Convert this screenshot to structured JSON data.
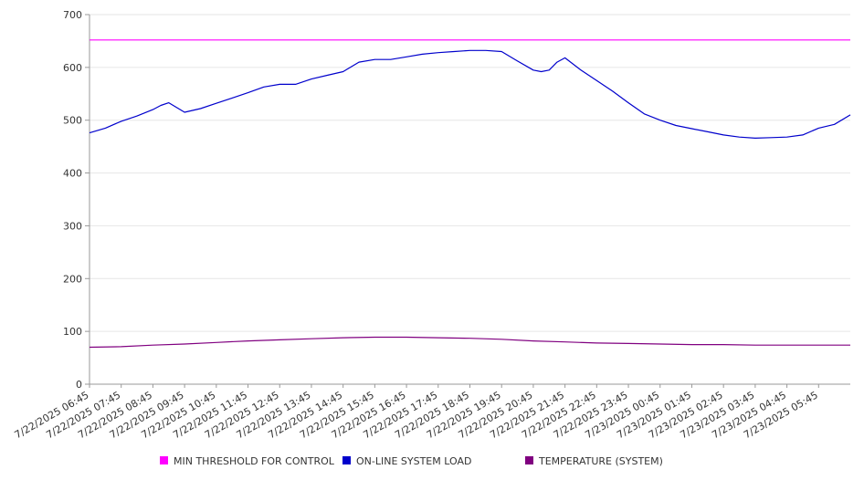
{
  "chart_data": {
    "type": "line",
    "ylim": [
      0,
      700
    ],
    "yticks": [
      0,
      100,
      200,
      300,
      400,
      500,
      600,
      700
    ],
    "x_range": [
      "7/22/2025 06:45",
      "7/23/2025 06:45"
    ],
    "xticks": [
      "7/22/2025 06:45",
      "7/22/2025 07:45",
      "7/22/2025 08:45",
      "7/22/2025 09:45",
      "7/22/2025 10:45",
      "7/22/2025 11:45",
      "7/22/2025 12:45",
      "7/22/2025 13:45",
      "7/22/2025 14:45",
      "7/22/2025 15:45",
      "7/22/2025 16:45",
      "7/22/2025 17:45",
      "7/22/2025 18:45",
      "7/22/2025 19:45",
      "7/22/2025 20:45",
      "7/22/2025 21:45",
      "7/22/2025 22:45",
      "7/22/2025 23:45",
      "7/23/2025 00:45",
      "7/23/2025 01:45",
      "7/23/2025 02:45",
      "7/23/2025 03:45",
      "7/23/2025 04:45",
      "7/23/2025 05:45"
    ],
    "grid": "horizontal",
    "legend_position": "bottom",
    "series": [
      {
        "name": "MIN THRESHOLD FOR CONTROL",
        "color": "#ff00ff",
        "x": [
          "7/22/2025 06:45",
          "7/23/2025 06:45"
        ],
        "y": [
          652,
          652
        ]
      },
      {
        "name": "ON-LINE SYSTEM LOAD",
        "color": "#0000cc",
        "x": [
          "7/22/2025 06:45",
          "7/22/2025 07:15",
          "7/22/2025 07:45",
          "7/22/2025 08:15",
          "7/22/2025 08:45",
          "7/22/2025 09:00",
          "7/22/2025 09:15",
          "7/22/2025 09:45",
          "7/22/2025 10:15",
          "7/22/2025 10:45",
          "7/22/2025 11:15",
          "7/22/2025 11:45",
          "7/22/2025 12:15",
          "7/22/2025 12:45",
          "7/22/2025 13:15",
          "7/22/2025 13:45",
          "7/22/2025 14:15",
          "7/22/2025 14:45",
          "7/22/2025 15:15",
          "7/22/2025 15:45",
          "7/22/2025 16:15",
          "7/22/2025 16:45",
          "7/22/2025 17:15",
          "7/22/2025 17:45",
          "7/22/2025 18:15",
          "7/22/2025 18:45",
          "7/22/2025 19:15",
          "7/22/2025 19:45",
          "7/22/2025 20:15",
          "7/22/2025 20:45",
          "7/22/2025 21:00",
          "7/22/2025 21:15",
          "7/22/2025 21:30",
          "7/22/2025 21:45",
          "7/22/2025 22:15",
          "7/22/2025 22:45",
          "7/22/2025 23:15",
          "7/22/2025 23:45",
          "7/23/2025 00:15",
          "7/23/2025 00:45",
          "7/23/2025 01:15",
          "7/23/2025 01:45",
          "7/23/2025 02:15",
          "7/23/2025 02:45",
          "7/23/2025 03:15",
          "7/23/2025 03:45",
          "7/23/2025 04:15",
          "7/23/2025 04:45",
          "7/23/2025 05:15",
          "7/23/2025 05:45",
          "7/23/2025 06:15",
          "7/23/2025 06:45"
        ],
        "y": [
          476,
          485,
          498,
          508,
          520,
          528,
          533,
          515,
          522,
          532,
          542,
          552,
          563,
          568,
          568,
          578,
          585,
          592,
          610,
          615,
          615,
          620,
          625,
          628,
          630,
          632,
          632,
          630,
          612,
          595,
          592,
          595,
          610,
          618,
          595,
          575,
          555,
          533,
          512,
          500,
          490,
          484,
          478,
          472,
          468,
          466,
          467,
          468,
          472,
          485,
          492,
          510
        ]
      },
      {
        "name": "TEMPERATURE (SYSTEM)",
        "color": "#800080",
        "x": [
          "7/22/2025 06:45",
          "7/22/2025 07:45",
          "7/22/2025 08:45",
          "7/22/2025 09:45",
          "7/22/2025 10:45",
          "7/22/2025 11:45",
          "7/22/2025 12:45",
          "7/22/2025 13:45",
          "7/22/2025 14:45",
          "7/22/2025 15:45",
          "7/22/2025 16:45",
          "7/22/2025 17:45",
          "7/22/2025 18:45",
          "7/22/2025 19:45",
          "7/22/2025 20:45",
          "7/22/2025 21:45",
          "7/22/2025 22:45",
          "7/22/2025 23:45",
          "7/23/2025 00:45",
          "7/23/2025 01:45",
          "7/23/2025 02:45",
          "7/23/2025 03:45",
          "7/23/2025 04:45",
          "7/23/2025 05:45",
          "7/23/2025 06:45"
        ],
        "y": [
          70,
          71,
          74,
          76,
          79,
          82,
          84,
          86,
          88,
          89,
          89,
          88,
          87,
          85,
          82,
          80,
          78,
          77,
          76,
          75,
          75,
          74,
          74,
          74,
          74
        ]
      }
    ]
  }
}
